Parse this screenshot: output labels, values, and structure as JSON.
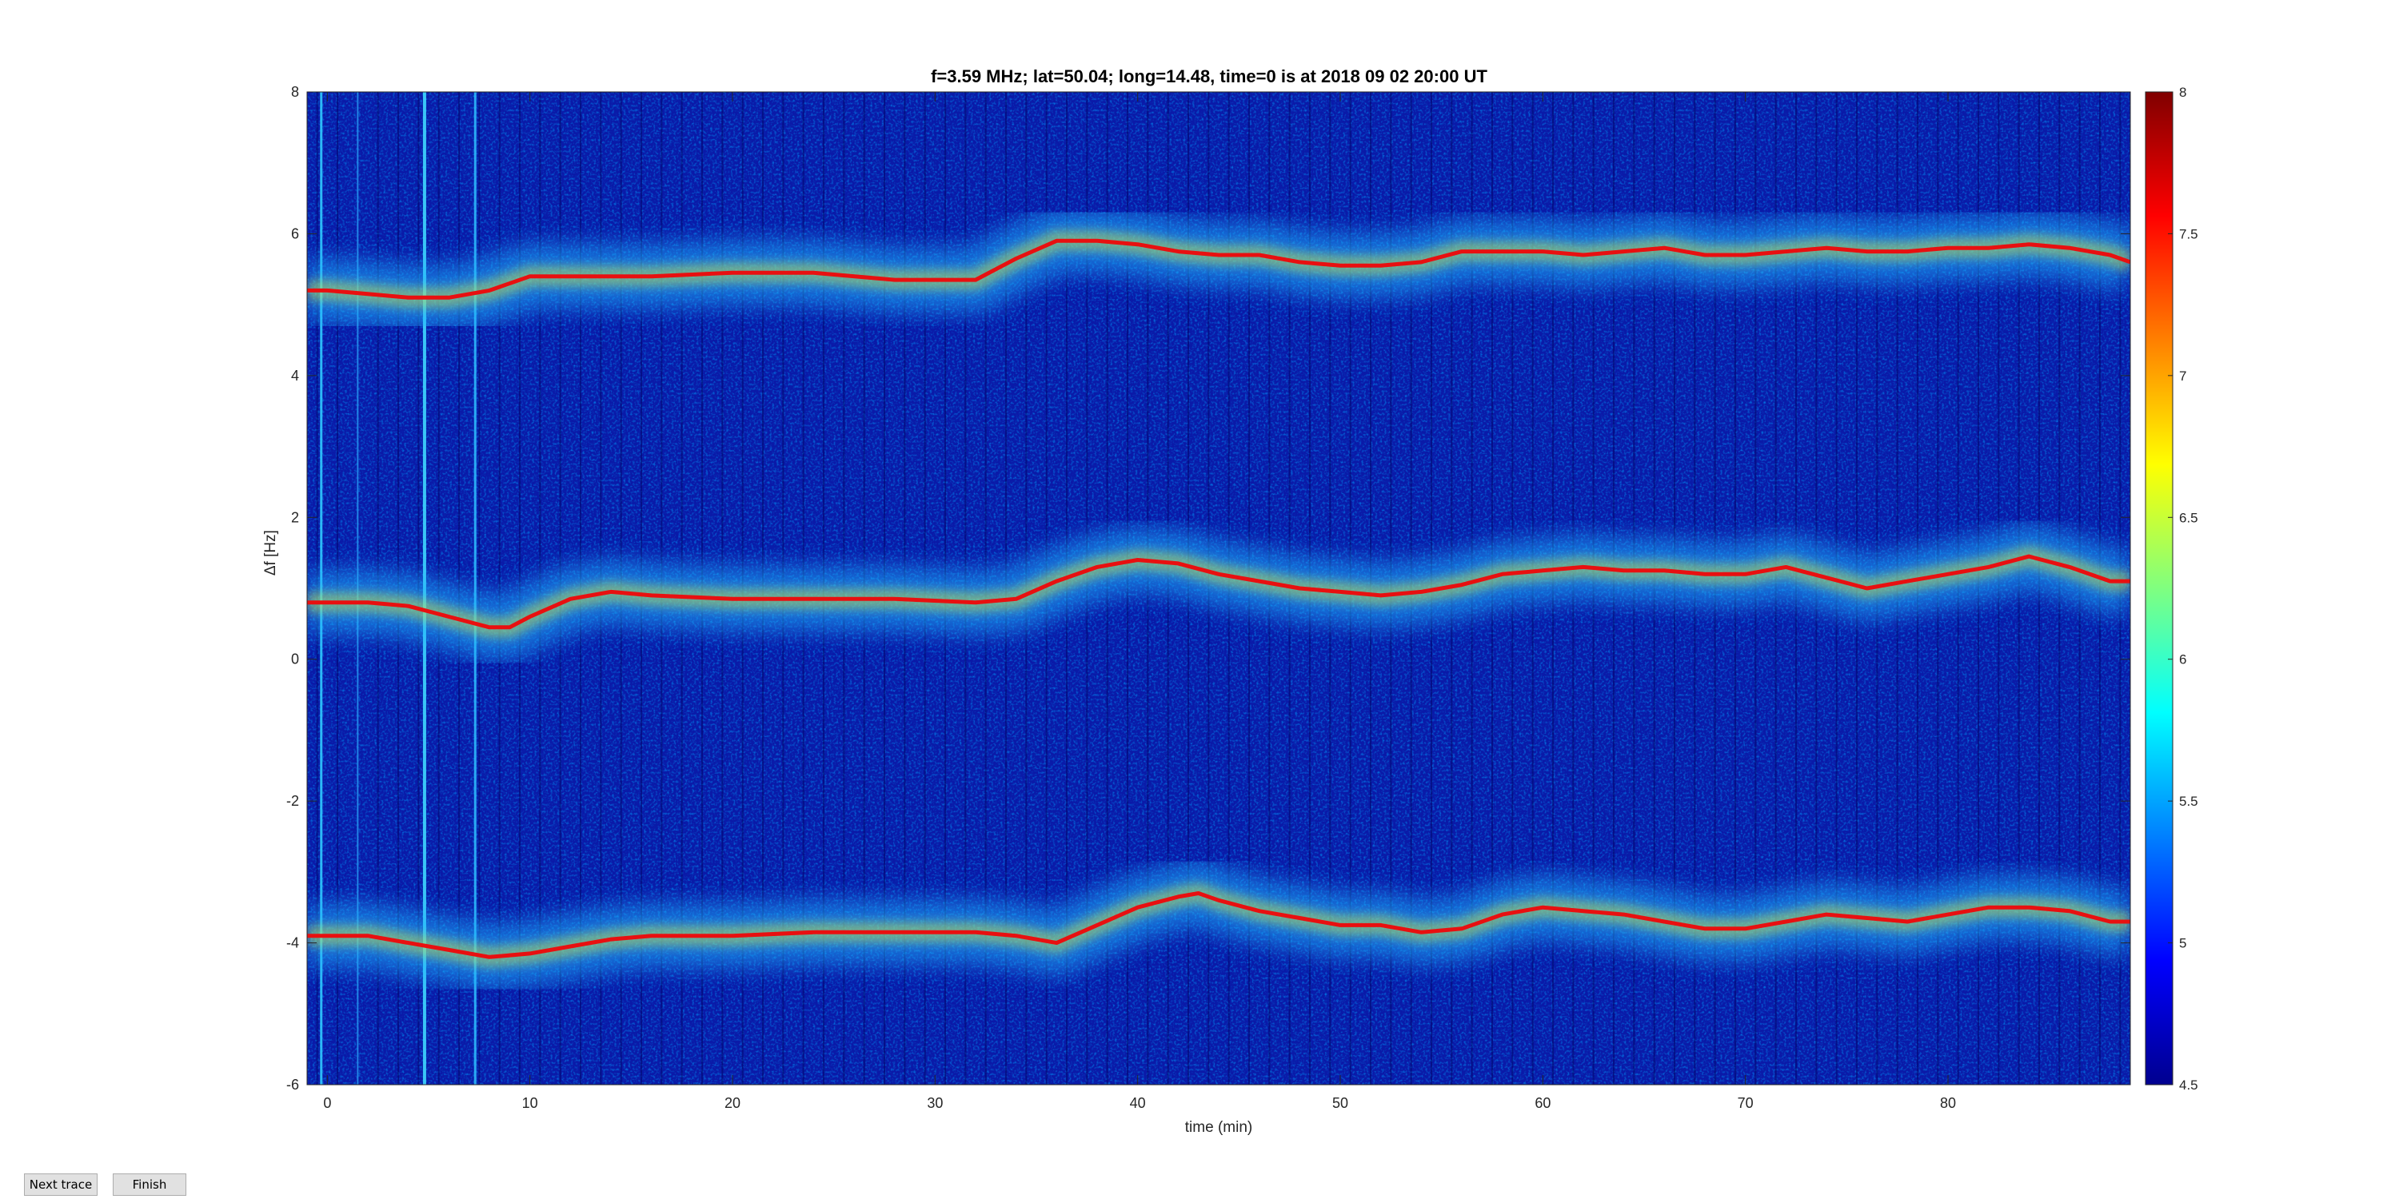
{
  "chart_data": {
    "type": "heatmap",
    "title": "f=3.59 MHz;  lat=50.04; long=14.48, time=0 is at 2018 09 02 20:00 UT",
    "xlabel": "time (min)",
    "ylabel": "Δf [Hz]",
    "xlim": [
      -1,
      89
    ],
    "ylim": [
      -6,
      8
    ],
    "x_ticks": [
      0,
      10,
      20,
      30,
      40,
      50,
      60,
      70,
      80
    ],
    "y_ticks": [
      -6,
      -4,
      -2,
      0,
      2,
      4,
      6,
      8
    ],
    "colorbar": {
      "colormap": "jet",
      "clim": [
        4.5,
        8
      ],
      "ticks": [
        4.5,
        5,
        5.5,
        6,
        6.5,
        7,
        7.5,
        8
      ]
    },
    "series": [
      {
        "x": [
          -1,
          0,
          2,
          4,
          6,
          8,
          10,
          12,
          14,
          16,
          20,
          24,
          28,
          32,
          34,
          36,
          38,
          40,
          42,
          44,
          46,
          48,
          50,
          52,
          54,
          56,
          58,
          60,
          62,
          64,
          66,
          68,
          70,
          72,
          74,
          76,
          78,
          80,
          82,
          84,
          86,
          88,
          89
        ],
        "values": [
          5.2,
          5.2,
          5.15,
          5.1,
          5.1,
          5.2,
          5.4,
          5.4,
          5.4,
          5.4,
          5.45,
          5.45,
          5.35,
          5.35,
          5.65,
          5.9,
          5.9,
          5.85,
          5.75,
          5.7,
          5.7,
          5.6,
          5.55,
          5.55,
          5.6,
          5.75,
          5.75,
          5.75,
          5.7,
          5.75,
          5.8,
          5.7,
          5.7,
          5.75,
          5.8,
          5.75,
          5.75,
          5.8,
          5.8,
          5.85,
          5.8,
          5.7,
          5.6
        ]
      },
      {
        "x": [
          -1,
          0,
          2,
          4,
          6,
          8,
          9,
          10,
          12,
          14,
          16,
          20,
          24,
          28,
          32,
          34,
          36,
          38,
          40,
          42,
          44,
          46,
          48,
          50,
          52,
          54,
          56,
          58,
          60,
          62,
          64,
          66,
          68,
          70,
          72,
          74,
          76,
          78,
          80,
          82,
          84,
          86,
          88,
          89
        ],
        "values": [
          0.8,
          0.8,
          0.8,
          0.75,
          0.6,
          0.45,
          0.45,
          0.6,
          0.85,
          0.95,
          0.9,
          0.85,
          0.85,
          0.85,
          0.8,
          0.85,
          1.1,
          1.3,
          1.4,
          1.35,
          1.2,
          1.1,
          1.0,
          0.95,
          0.9,
          0.95,
          1.05,
          1.2,
          1.25,
          1.3,
          1.25,
          1.25,
          1.2,
          1.2,
          1.3,
          1.15,
          1.0,
          1.1,
          1.2,
          1.3,
          1.45,
          1.3,
          1.1,
          1.1
        ]
      },
      {
        "x": [
          -1,
          0,
          2,
          4,
          6,
          8,
          10,
          12,
          14,
          16,
          20,
          24,
          28,
          32,
          34,
          36,
          38,
          40,
          42,
          43,
          44,
          46,
          48,
          50,
          52,
          54,
          56,
          58,
          60,
          62,
          64,
          66,
          68,
          70,
          72,
          74,
          76,
          78,
          80,
          82,
          84,
          86,
          88,
          89
        ],
        "values": [
          -3.9,
          -3.9,
          -3.9,
          -4.0,
          -4.1,
          -4.2,
          -4.15,
          -4.05,
          -3.95,
          -3.9,
          -3.9,
          -3.85,
          -3.85,
          -3.85,
          -3.9,
          -4.0,
          -3.75,
          -3.5,
          -3.35,
          -3.3,
          -3.4,
          -3.55,
          -3.65,
          -3.75,
          -3.75,
          -3.85,
          -3.8,
          -3.6,
          -3.5,
          -3.55,
          -3.6,
          -3.7,
          -3.8,
          -3.8,
          -3.7,
          -3.6,
          -3.65,
          -3.7,
          -3.6,
          -3.5,
          -3.5,
          -3.55,
          -3.7,
          -3.7
        ]
      }
    ]
  },
  "buttons": {
    "next_trace": "Next trace",
    "finish": "Finish"
  }
}
